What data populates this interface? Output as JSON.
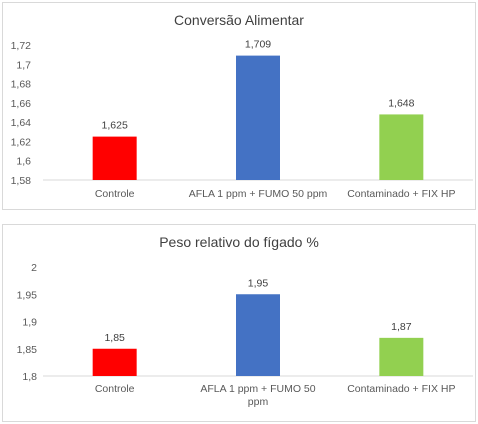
{
  "chart_data": [
    {
      "type": "bar",
      "title": "Conversão Alimentar",
      "categories": [
        "Controle",
        "AFLA 1 ppm + FUMO 50 ppm",
        "Contaminado + FIX HP"
      ],
      "values": [
        1.625,
        1.709,
        1.648
      ],
      "data_labels": [
        "1,625",
        "1,709",
        "1,648"
      ],
      "colors": [
        "#ff0000",
        "#4472c4",
        "#92d050"
      ],
      "ylim": [
        1.58,
        1.72
      ],
      "yticks": [
        1.58,
        1.6,
        1.62,
        1.64,
        1.66,
        1.68,
        1.7,
        1.72
      ],
      "ytick_labels": [
        "1,58",
        "1,6",
        "1,62",
        "1,64",
        "1,66",
        "1,68",
        "1,7",
        "1,72"
      ],
      "grid": false
    },
    {
      "type": "bar",
      "title": "Peso relativo do fígado %",
      "categories": [
        "Controle",
        "AFLA 1 ppm + FUMO 50 ppm",
        "Contaminado + FIX HP"
      ],
      "values": [
        1.85,
        1.95,
        1.87
      ],
      "data_labels": [
        "1,85",
        "1,95",
        "1,87"
      ],
      "colors": [
        "#ff0000",
        "#4472c4",
        "#92d050"
      ],
      "ylim": [
        1.8,
        2.0
      ],
      "yticks": [
        1.8,
        1.85,
        1.9,
        1.95,
        2.0
      ],
      "ytick_labels": [
        "1,8",
        "1,85",
        "1,9",
        "1,95",
        "2"
      ],
      "grid": false
    }
  ]
}
